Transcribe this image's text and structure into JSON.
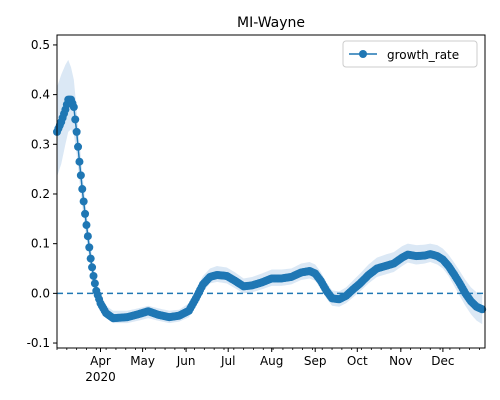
{
  "chart_data": {
    "type": "line",
    "title": "MI-Wayne",
    "xlabel": "",
    "ylabel": "",
    "ylim": [
      -0.11,
      0.52
    ],
    "xlim": [
      "2020-03-01",
      "2020-12-31"
    ],
    "grid": false,
    "legend_placement": "top-right",
    "zero_line": {
      "y": 0.0,
      "style": "dashed",
      "color": "#1f77b4"
    },
    "x_ticks": [
      {
        "date": "2020-04-01",
        "label": "Apr",
        "sublabel": "2020"
      },
      {
        "date": "2020-05-01",
        "label": "May"
      },
      {
        "date": "2020-06-01",
        "label": "Jun"
      },
      {
        "date": "2020-07-01",
        "label": "Jul"
      },
      {
        "date": "2020-08-01",
        "label": "Aug"
      },
      {
        "date": "2020-09-01",
        "label": "Sep"
      },
      {
        "date": "2020-10-01",
        "label": "Oct"
      },
      {
        "date": "2020-11-01",
        "label": "Nov"
      },
      {
        "date": "2020-12-01",
        "label": "Dec"
      }
    ],
    "y_ticks": [
      -0.1,
      0.0,
      0.1,
      0.2,
      0.3,
      0.4,
      0.5
    ],
    "series": [
      {
        "name": "growth_rate",
        "color": "#1f77b4",
        "band_color": "#dbe8f5",
        "points": [
          [
            "2020-03-01",
            0.325,
            0.235,
            0.415
          ],
          [
            "2020-03-04",
            0.345,
            0.26,
            0.44
          ],
          [
            "2020-03-07",
            0.37,
            0.3,
            0.46
          ],
          [
            "2020-03-09",
            0.39,
            0.325,
            0.47
          ],
          [
            "2020-03-11",
            0.39,
            0.33,
            0.455
          ],
          [
            "2020-03-13",
            0.375,
            0.32,
            0.43
          ],
          [
            "2020-03-14",
            0.35,
            0.3,
            0.4
          ],
          [
            "2020-03-15",
            0.325,
            0.28,
            0.37
          ],
          [
            "2020-03-17",
            0.265,
            0.225,
            0.305
          ],
          [
            "2020-03-19",
            0.21,
            0.175,
            0.245
          ],
          [
            "2020-03-21",
            0.16,
            0.13,
            0.19
          ],
          [
            "2020-03-23",
            0.115,
            0.09,
            0.14
          ],
          [
            "2020-03-25",
            0.07,
            0.05,
            0.095
          ],
          [
            "2020-03-27",
            0.035,
            0.015,
            0.055
          ],
          [
            "2020-03-29",
            0.005,
            -0.01,
            0.02
          ],
          [
            "2020-04-01",
            -0.02,
            -0.03,
            -0.005
          ],
          [
            "2020-04-05",
            -0.04,
            -0.05,
            -0.025
          ],
          [
            "2020-04-10",
            -0.05,
            -0.06,
            -0.035
          ],
          [
            "2020-04-20",
            -0.048,
            -0.06,
            -0.035
          ],
          [
            "2020-04-28",
            -0.042,
            -0.055,
            -0.03
          ],
          [
            "2020-05-05",
            -0.036,
            -0.05,
            -0.025
          ],
          [
            "2020-05-12",
            -0.043,
            -0.055,
            -0.03
          ],
          [
            "2020-05-20",
            -0.048,
            -0.06,
            -0.035
          ],
          [
            "2020-05-27",
            -0.045,
            -0.057,
            -0.033
          ],
          [
            "2020-06-03",
            -0.035,
            -0.048,
            -0.02
          ],
          [
            "2020-06-08",
            -0.01,
            -0.025,
            0.008
          ],
          [
            "2020-06-13",
            0.018,
            0.003,
            0.035
          ],
          [
            "2020-06-18",
            0.033,
            0.02,
            0.05
          ],
          [
            "2020-06-23",
            0.037,
            0.023,
            0.055
          ],
          [
            "2020-06-30",
            0.035,
            0.02,
            0.052
          ],
          [
            "2020-07-06",
            0.025,
            0.01,
            0.042
          ],
          [
            "2020-07-12",
            0.014,
            0.0,
            0.03
          ],
          [
            "2020-07-18",
            0.016,
            0.002,
            0.033
          ],
          [
            "2020-07-25",
            0.022,
            0.008,
            0.04
          ],
          [
            "2020-08-01",
            0.03,
            0.015,
            0.048
          ],
          [
            "2020-08-08",
            0.03,
            0.015,
            0.048
          ],
          [
            "2020-08-15",
            0.033,
            0.018,
            0.05
          ],
          [
            "2020-08-22",
            0.042,
            0.027,
            0.06
          ],
          [
            "2020-08-28",
            0.045,
            0.03,
            0.063
          ],
          [
            "2020-09-01",
            0.04,
            0.025,
            0.058
          ],
          [
            "2020-09-05",
            0.025,
            0.01,
            0.043
          ],
          [
            "2020-09-09",
            0.005,
            -0.01,
            0.022
          ],
          [
            "2020-09-13",
            -0.01,
            -0.025,
            0.006
          ],
          [
            "2020-09-18",
            -0.012,
            -0.027,
            0.004
          ],
          [
            "2020-09-23",
            -0.005,
            -0.02,
            0.012
          ],
          [
            "2020-09-28",
            0.008,
            -0.008,
            0.026
          ],
          [
            "2020-10-03",
            0.02,
            0.004,
            0.04
          ],
          [
            "2020-10-09",
            0.037,
            0.02,
            0.058
          ],
          [
            "2020-10-15",
            0.05,
            0.033,
            0.072
          ],
          [
            "2020-10-21",
            0.055,
            0.038,
            0.078
          ],
          [
            "2020-10-27",
            0.06,
            0.043,
            0.083
          ],
          [
            "2020-11-02",
            0.072,
            0.055,
            0.095
          ],
          [
            "2020-11-06",
            0.078,
            0.062,
            0.1
          ],
          [
            "2020-11-12",
            0.075,
            0.058,
            0.097
          ],
          [
            "2020-11-18",
            0.076,
            0.06,
            0.098
          ],
          [
            "2020-11-22",
            0.079,
            0.063,
            0.1
          ],
          [
            "2020-11-27",
            0.075,
            0.058,
            0.097
          ],
          [
            "2020-12-01",
            0.068,
            0.05,
            0.09
          ],
          [
            "2020-12-05",
            0.055,
            0.035,
            0.078
          ],
          [
            "2020-12-09",
            0.038,
            0.015,
            0.062
          ],
          [
            "2020-12-13",
            0.02,
            -0.005,
            0.045
          ],
          [
            "2020-12-17",
            0.0,
            -0.025,
            0.027
          ],
          [
            "2020-12-21",
            -0.016,
            -0.042,
            0.012
          ],
          [
            "2020-12-25",
            -0.027,
            -0.055,
            0.002
          ],
          [
            "2020-12-29",
            -0.032,
            -0.062,
            -0.003
          ]
        ]
      }
    ]
  }
}
